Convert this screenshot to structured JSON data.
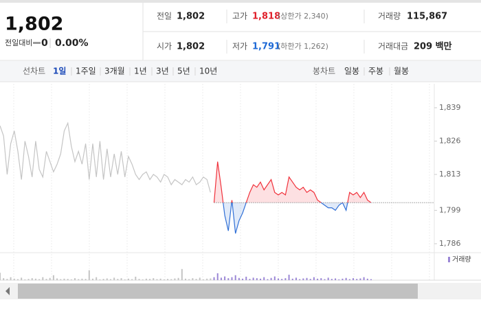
{
  "header": {
    "price": "1,802",
    "change_label": "전일대비",
    "change": "0",
    "change_rate": "0.00%",
    "stats": {
      "prev_close_label": "전일",
      "prev_close": "1,802",
      "high_label": "고가",
      "high": "1,818",
      "upper_limit": "(상한가 2,340)",
      "volume_label": "거래량",
      "volume": "115,867",
      "open_label": "시가",
      "open": "1,802",
      "low_label": "저가",
      "low": "1,791",
      "lower_limit": "(하한가 1,262)",
      "amount_label": "거래대금",
      "amount": "209 백만"
    }
  },
  "tabs": {
    "line_label": "선차트",
    "line_periods": [
      "1일",
      "1주일",
      "3개월",
      "1년",
      "3년",
      "5년",
      "10년"
    ],
    "active": 0,
    "candle_label": "봉차트",
    "candle_periods": [
      "일봉",
      "주봉",
      "월봉"
    ]
  },
  "chart_data": {
    "type": "line",
    "baseline": 1802,
    "grid": false,
    "ylim": [
      1783.3,
      1846.2
    ],
    "yticks": [
      {
        "value": 1839,
        "label": "1,839"
      },
      {
        "value": 1826,
        "label": "1,826"
      },
      {
        "value": 1813,
        "label": "1,813"
      },
      {
        "value": 1799,
        "label": "1,799"
      },
      {
        "value": 1786,
        "label": "1,786"
      }
    ],
    "y2lim": [
      0,
      100
    ],
    "series": [
      {
        "color": "#c4c4c4",
        "values": [
          1832,
          1828,
          1813,
          1825,
          1830,
          1822,
          1811,
          1826,
          1820,
          1812,
          1826,
          1815,
          1812,
          1822,
          1818,
          1814,
          1817,
          1821,
          1830,
          1833,
          1824,
          1818,
          1822,
          1817,
          1825,
          1811,
          1825,
          1812,
          1826,
          1811,
          1823,
          1812,
          1821,
          1813,
          1822,
          1812,
          1820,
          1817,
          1813,
          1811,
          1813,
          1814,
          1811,
          1813,
          1812,
          1810,
          1813,
          1812,
          1809,
          1811,
          1810,
          1809,
          1811,
          1810,
          1812,
          1809,
          1810,
          1812,
          1811,
          1806,
          null,
          null,
          null,
          null,
          null,
          null,
          null,
          null,
          null,
          null,
          null,
          null,
          null,
          null,
          null,
          null,
          null,
          null,
          null,
          null,
          null,
          null,
          null,
          null,
          null,
          null,
          null,
          null,
          null,
          null,
          null,
          null,
          null,
          null,
          null,
          null,
          null,
          null,
          null,
          null,
          null,
          null,
          null,
          null,
          null
        ]
      },
      {
        "color": "#f0303a",
        "color_down": "#2f6fd6",
        "values": [
          null,
          null,
          null,
          null,
          null,
          null,
          null,
          null,
          null,
          null,
          null,
          null,
          null,
          null,
          null,
          null,
          null,
          null,
          null,
          null,
          null,
          null,
          null,
          null,
          null,
          null,
          null,
          null,
          null,
          null,
          null,
          null,
          null,
          null,
          null,
          null,
          null,
          null,
          null,
          null,
          null,
          null,
          null,
          null,
          null,
          null,
          null,
          null,
          null,
          null,
          null,
          null,
          null,
          null,
          null,
          null,
          null,
          null,
          null,
          null,
          1802,
          1818,
          1808,
          1797,
          1791,
          1803,
          1790,
          1795,
          1798,
          1802,
          1806,
          1809,
          1808,
          1810,
          1807,
          1809,
          1811,
          1806,
          1805,
          1806,
          1805,
          1812,
          1810,
          1808,
          1807,
          1808,
          1806,
          1807,
          1806,
          1803,
          1802,
          1801,
          1800,
          1800,
          1799,
          1801,
          1802,
          1799,
          1806,
          1805,
          1806,
          1804,
          1806,
          1803,
          1802
        ]
      },
      {
        "axis": "y2",
        "color": "#c4c4c4",
        "values": [
          30,
          8,
          5,
          12,
          6,
          4,
          10,
          3,
          5,
          8,
          6,
          4,
          12,
          5,
          9,
          20,
          7,
          4,
          6,
          5,
          3,
          8,
          4,
          6,
          5,
          40,
          6,
          12,
          3,
          5,
          7,
          4,
          10,
          5,
          8,
          3,
          6,
          4,
          14,
          5,
          3,
          6,
          5,
          8,
          4,
          6,
          3,
          5,
          4,
          7,
          9,
          45,
          6,
          4,
          8,
          5,
          10,
          3,
          6,
          7,
          null,
          null,
          null,
          null,
          null,
          null,
          null,
          null,
          null,
          null,
          null,
          null,
          null,
          null,
          null,
          null,
          null,
          null,
          null,
          null,
          null,
          null,
          null,
          null,
          null,
          null,
          null,
          null,
          null,
          null,
          null,
          null,
          null,
          null,
          null,
          null,
          null,
          null,
          null,
          null,
          null,
          null,
          null,
          null,
          null
        ]
      },
      {
        "axis": "y2",
        "name": "거래량",
        "color": "#9b87d6",
        "values": [
          null,
          null,
          null,
          null,
          null,
          null,
          null,
          null,
          null,
          null,
          null,
          null,
          null,
          null,
          null,
          null,
          null,
          null,
          null,
          null,
          null,
          null,
          null,
          null,
          null,
          null,
          null,
          null,
          null,
          null,
          null,
          null,
          null,
          null,
          null,
          null,
          null,
          null,
          null,
          null,
          null,
          null,
          null,
          null,
          null,
          null,
          null,
          null,
          null,
          null,
          null,
          null,
          null,
          null,
          null,
          null,
          null,
          null,
          null,
          null,
          12,
          28,
          10,
          15,
          8,
          12,
          20,
          9,
          6,
          14,
          5,
          10,
          8,
          6,
          12,
          4,
          9,
          15,
          7,
          5,
          8,
          22,
          6,
          10,
          4,
          7,
          9,
          5,
          12,
          6,
          8,
          4,
          10,
          5,
          7,
          3,
          6,
          9,
          4,
          8,
          5,
          7,
          12,
          6,
          4
        ]
      }
    ]
  }
}
